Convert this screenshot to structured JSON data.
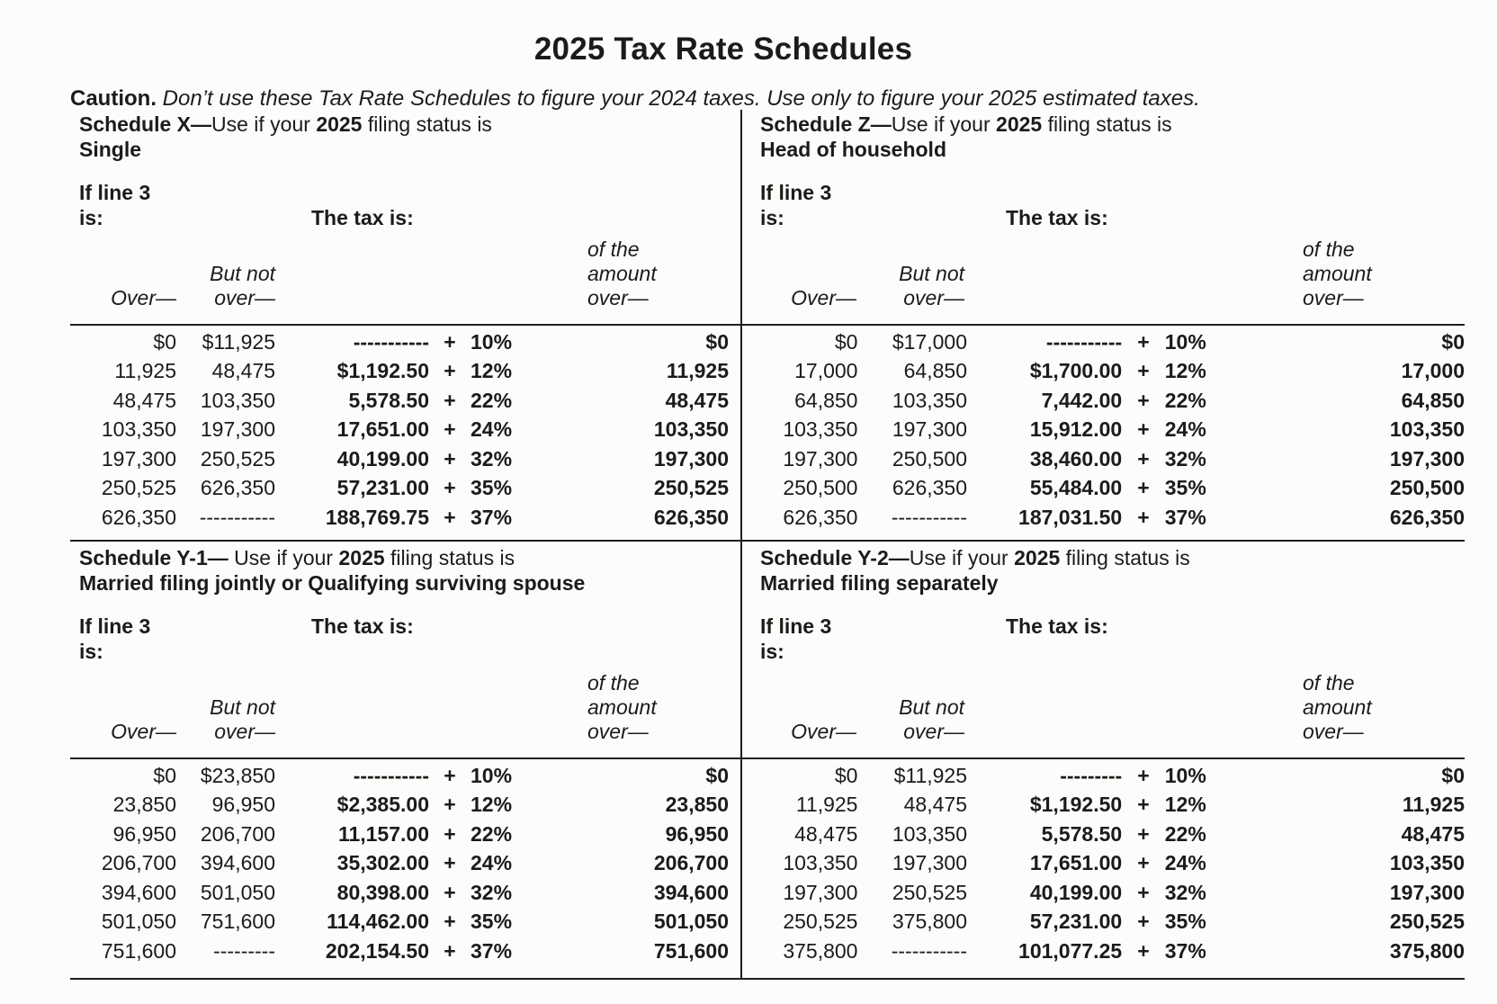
{
  "page": {
    "title": "2025 Tax Rate Schedules",
    "caution_label": "Caution.",
    "caution_text": " Don’t use these Tax Rate Schedules to figure your 2024 taxes. Use only to figure your 2025 estimated taxes."
  },
  "colors": {
    "text": "#1b1b19",
    "rule": "#1f1f1f",
    "background": "#fcfcfb"
  },
  "column_headers": {
    "if_line1": "If line 3",
    "if_line2": "is:",
    "tax_is": "The tax is:",
    "over": "Over—",
    "but_not_1": "But not",
    "but_not_2": "over—",
    "of_1": "of the",
    "of_2": "amount",
    "of_3": "over—"
  },
  "schedules": [
    {
      "id": "X",
      "title_lead": "Schedule X—",
      "title_mid": "Use if your ",
      "title_year": "2025",
      "title_tail": " filing status is",
      "status": "Single",
      "rows": [
        [
          "$0",
          "$11,925",
          "-----------",
          "+",
          "10%",
          "$0"
        ],
        [
          "11,925",
          "48,475",
          "$1,192.50",
          "+",
          "12%",
          "11,925"
        ],
        [
          "48,475",
          "103,350",
          "5,578.50",
          "+",
          "22%",
          "48,475"
        ],
        [
          "103,350",
          "197,300",
          "17,651.00",
          "+",
          "24%",
          "103,350"
        ],
        [
          "197,300",
          "250,525",
          "40,199.00",
          "+",
          "32%",
          "197,300"
        ],
        [
          "250,525",
          "626,350",
          "57,231.00",
          "+",
          "35%",
          "250,525"
        ],
        [
          "626,350",
          "-----------",
          "188,769.75",
          "+",
          "37%",
          "626,350"
        ]
      ]
    },
    {
      "id": "Z",
      "title_lead": "Schedule Z—",
      "title_mid": "Use if your ",
      "title_year": "2025",
      "title_tail": " filing status is",
      "status": "Head of household",
      "rows": [
        [
          "$0",
          "$17,000",
          "-----------",
          "+",
          "10%",
          "$0"
        ],
        [
          "17,000",
          "64,850",
          "$1,700.00",
          "+",
          "12%",
          "17,000"
        ],
        [
          "64,850",
          "103,350",
          "7,442.00",
          "+",
          "22%",
          "64,850"
        ],
        [
          "103,350",
          "197,300",
          "15,912.00",
          "+",
          "24%",
          "103,350"
        ],
        [
          "197,300",
          "250,500",
          "38,460.00",
          "+",
          "32%",
          "197,300"
        ],
        [
          "250,500",
          "626,350",
          "55,484.00",
          "+",
          "35%",
          "250,500"
        ],
        [
          "626,350",
          "-----------",
          "187,031.50",
          "+",
          "37%",
          "626,350"
        ]
      ]
    },
    {
      "id": "Y-1",
      "title_lead": "Schedule Y-1—",
      "title_mid": " Use if your ",
      "title_year": "2025",
      "title_tail": " filing status is",
      "status": "Married filing jointly or Qualifying surviving spouse",
      "rows": [
        [
          "$0",
          "$23,850",
          "-----------",
          "+",
          "10%",
          "$0"
        ],
        [
          "23,850",
          "96,950",
          "$2,385.00",
          "+",
          "12%",
          "23,850"
        ],
        [
          "96,950",
          "206,700",
          "11,157.00",
          "+",
          "22%",
          "96,950"
        ],
        [
          "206,700",
          "394,600",
          "35,302.00",
          "+",
          "24%",
          "206,700"
        ],
        [
          "394,600",
          "501,050",
          "80,398.00",
          "+",
          "32%",
          "394,600"
        ],
        [
          "501,050",
          "751,600",
          "114,462.00",
          "+",
          "35%",
          "501,050"
        ],
        [
          "751,600",
          "---------",
          "202,154.50",
          "+",
          "37%",
          "751,600"
        ]
      ]
    },
    {
      "id": "Y-2",
      "title_lead": "Schedule Y-2—",
      "title_mid": "Use if your ",
      "title_year": "2025",
      "title_tail": " filing status is",
      "status": "Married filing separately",
      "rows": [
        [
          "$0",
          "$11,925",
          "---------",
          "+",
          "10%",
          "$0"
        ],
        [
          "11,925",
          "48,475",
          "$1,192.50",
          "+",
          "12%",
          "11,925"
        ],
        [
          "48,475",
          "103,350",
          "5,578.50",
          "+",
          "22%",
          "48,475"
        ],
        [
          "103,350",
          "197,300",
          "17,651.00",
          "+",
          "24%",
          "103,350"
        ],
        [
          "197,300",
          "250,525",
          "40,199.00",
          "+",
          "32%",
          "197,300"
        ],
        [
          "250,525",
          "375,800",
          "57,231.00",
          "+",
          "35%",
          "250,525"
        ],
        [
          "375,800",
          "-----------",
          "101,077.25",
          "+",
          "37%",
          "375,800"
        ]
      ]
    }
  ]
}
